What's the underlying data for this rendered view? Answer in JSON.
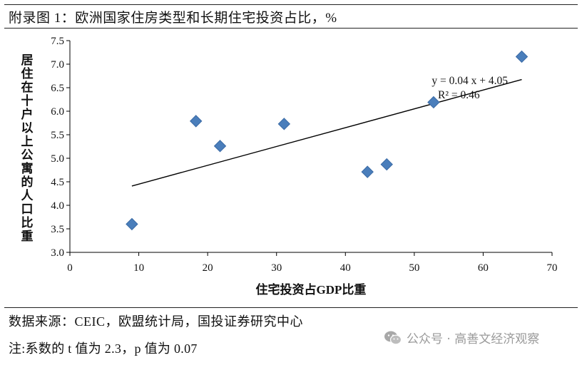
{
  "header": {
    "title": "附录图 1：欧洲国家住房类型和长期住宅投资占比，%"
  },
  "footer": {
    "source": "数据来源：CEIC，欧盟统计局，国投证券研究中心",
    "note": "注:系数的 t 值为 2.3，p 值为 0.07",
    "watermark": "公众号 · 高善文经济观察",
    "watermark_icon": "wechat-icon"
  },
  "colors": {
    "marker": "#4a7ebb",
    "marker_edge": "#3a6aa5",
    "trendline": "#000000",
    "axis": "#000000",
    "watermark": "#9a9a9a"
  },
  "chart_data": {
    "type": "scatter",
    "title": "",
    "xlabel": "住宅投资占GDP比重",
    "ylabel": "居住在十户以上公寓的人口比重",
    "xlim": [
      0,
      70
    ],
    "ylim": [
      3.0,
      7.5
    ],
    "xticks": [
      0,
      10,
      20,
      30,
      40,
      50,
      60,
      70
    ],
    "yticks": [
      "3.0",
      "3.5",
      "4.0",
      "4.5",
      "5.0",
      "5.5",
      "6.0",
      "6.5",
      "7.0",
      "7.5"
    ],
    "grid": false,
    "legend": "none",
    "points": [
      {
        "x": 9.0,
        "y": 3.6
      },
      {
        "x": 18.3,
        "y": 5.79
      },
      {
        "x": 21.8,
        "y": 5.26
      },
      {
        "x": 31.1,
        "y": 5.73
      },
      {
        "x": 43.2,
        "y": 4.71
      },
      {
        "x": 46.0,
        "y": 4.87
      },
      {
        "x": 52.8,
        "y": 6.19
      },
      {
        "x": 65.6,
        "y": 7.16
      }
    ],
    "trendline": {
      "slope": 0.04,
      "intercept": 4.05,
      "x_range": [
        9.0,
        65.6
      ]
    },
    "annotations": {
      "equation": "y = 0.04 x + 4.05",
      "r_squared": "R² = 0.46"
    }
  }
}
